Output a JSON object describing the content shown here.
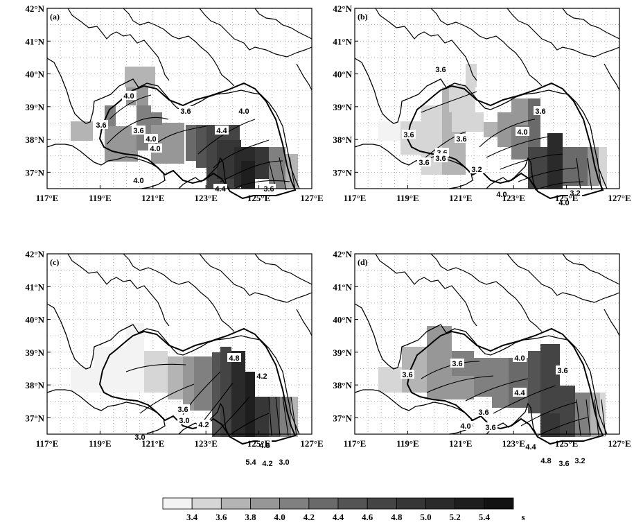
{
  "panels": [
    {
      "id": "a",
      "label": "(a)"
    },
    {
      "id": "b",
      "label": "(b)"
    },
    {
      "id": "c",
      "label": "(c)"
    },
    {
      "id": "d",
      "label": "(d)"
    }
  ],
  "lon_ticks": [
    "117°E",
    "119°E",
    "121°E",
    "123°E",
    "125°E",
    "127°E"
  ],
  "lat_ticks": [
    "42°N",
    "41°N",
    "40°N",
    "39°N",
    "38°N",
    "37°N"
  ],
  "colorbar": {
    "colors": [
      "#f3f3f3",
      "#d6d6d6",
      "#b4b4b4",
      "#979797",
      "#808080",
      "#6a6a6a",
      "#545454",
      "#444444",
      "#363636",
      "#2a2a2a",
      "#1e1e1e",
      "#121212"
    ],
    "tick_labels": [
      "3.4",
      "3.6",
      "3.8",
      "4.0",
      "4.2",
      "4.4",
      "4.6",
      "4.8",
      "5.0",
      "5.2",
      "5.4"
    ],
    "unit": "s"
  },
  "contour_labels": {
    "a": [
      "4.0",
      "3.6",
      "4.0",
      "3.6",
      "3.6",
      "4.0",
      "4.4",
      "4.0",
      "4.0",
      "4.4",
      "3.6"
    ],
    "b": [
      "3.6",
      "3.6",
      "4.0",
      "3.6",
      "3.6",
      "3.6",
      "3.6",
      "3.6",
      "3.2",
      "4.0",
      "4.0",
      "3.2"
    ],
    "c": [
      "4.8",
      "4.2",
      "3.6",
      "4.2",
      "3.0",
      "3.0",
      "4.8",
      "5.4",
      "4.2",
      "3.0"
    ],
    "d": [
      "4.0",
      "3.6",
      "3.6",
      "3.6",
      "4.4",
      "4.0",
      "3.6",
      "3.6",
      "4.4",
      "4.8",
      "3.6",
      "3.2"
    ]
  },
  "map": {
    "lon_range": [
      117,
      127
    ],
    "lat_range": [
      36.5,
      42
    ]
  }
}
